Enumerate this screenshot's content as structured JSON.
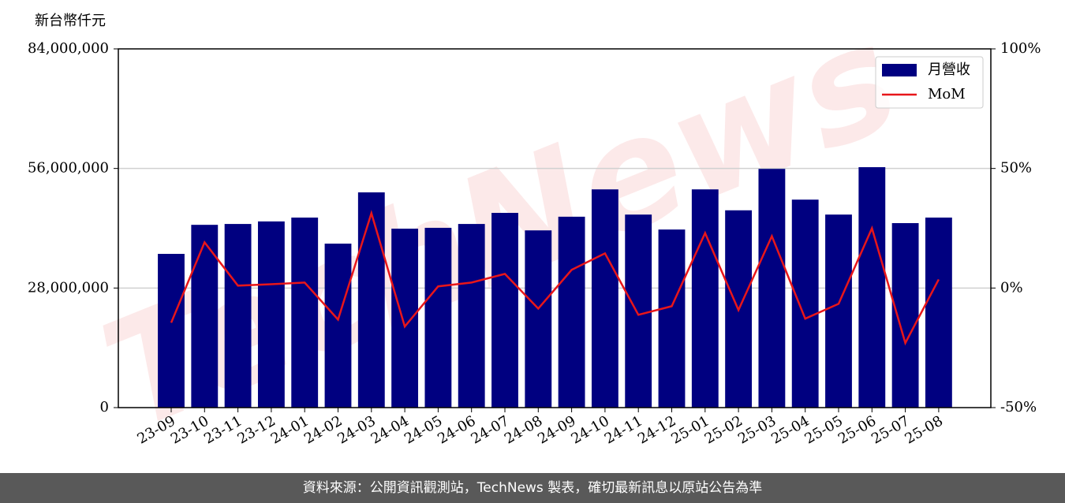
{
  "chart_data": {
    "type": "bar",
    "y_label": "新台幣仟元",
    "watermark": "TechNews",
    "categories": [
      "23-09",
      "23-10",
      "23-11",
      "23-12",
      "24-01",
      "24-02",
      "24-03",
      "24-04",
      "24-05",
      "24-06",
      "24-07",
      "24-08",
      "24-09",
      "24-10",
      "24-11",
      "24-12",
      "25-01",
      "25-02",
      "25-03",
      "25-04",
      "25-05",
      "25-06",
      "25-07",
      "25-08"
    ],
    "series": [
      {
        "name": "月營收",
        "type": "bar",
        "color": "#000080",
        "values": [
          36000000,
          42800000,
          43000000,
          43600000,
          44500000,
          38400000,
          50400000,
          41900000,
          42100000,
          43000000,
          45600000,
          41500000,
          44700000,
          51100000,
          45200000,
          41700000,
          51100000,
          46200000,
          55900000,
          48700000,
          45200000,
          56300000,
          43200000,
          44500000
        ]
      },
      {
        "name": "MoM",
        "type": "line",
        "axis": "y2",
        "color": "#e8161a",
        "values": [
          -14.5,
          19.1,
          1.0,
          1.6,
          2.3,
          -13.2,
          31.3,
          -16.1,
          0.7,
          2.3,
          5.9,
          -8.6,
          7.6,
          14.5,
          -11.2,
          -7.6,
          23.0,
          -9.2,
          21.7,
          -12.8,
          -6.6,
          25.0,
          -23.0,
          3.6
        ]
      }
    ],
    "ylim": [
      0,
      84000000
    ],
    "yticks": [
      0,
      {
        "value": 28000000,
        "label": "28,000,000"
      },
      {
        "value": 56000000,
        "label": "56,000,000"
      },
      {
        "value": 84000000,
        "label": "84,000,000"
      }
    ],
    "y2lim": [
      -50,
      100
    ],
    "y2ticks": [
      {
        "value": -50,
        "label": "-50%"
      },
      {
        "value": 0,
        "label": "0%"
      },
      {
        "value": 50,
        "label": "50%"
      },
      {
        "value": 100,
        "label": "100%"
      }
    ],
    "grid": true,
    "legend": "upper right"
  },
  "footer": "資料來源：公開資訊觀測站，TechNews 製表，確切最新訊息以原站公告為準"
}
